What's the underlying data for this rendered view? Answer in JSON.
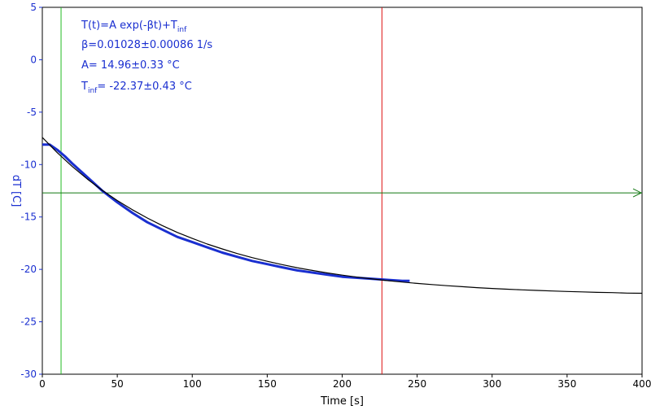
{
  "chart_data": {
    "type": "line",
    "xlabel": "Time [s]",
    "ylabel": "dT [C]",
    "xlim": [
      0,
      400
    ],
    "ylim": [
      -30,
      5
    ],
    "x_ticks": [
      0,
      50,
      100,
      150,
      200,
      250,
      300,
      350,
      400
    ],
    "y_ticks": [
      5,
      0,
      -5,
      -10,
      -15,
      -20,
      -25,
      -30
    ],
    "grid": false,
    "annotations": {
      "formula_main": "T(t)=A exp(-βt)+T",
      "formula_sub": "inf",
      "beta_text": "β=0.01028±0.00086 1/s",
      "a_text": "A= 14.96±0.33 °C",
      "tinf_main": "T",
      "tinf_sub": "inf",
      "tinf_rest": "= -22.37±0.43 °C"
    },
    "fit": {
      "A": 14.96,
      "beta": 0.01028,
      "T_inf": -22.37
    },
    "cursors": {
      "green_vertical_x": 12.5,
      "red_vertical_x": 226.5,
      "green_horizontal_y": -12.7
    },
    "series": [
      {
        "color": "#1a2fd0",
        "x": [
          0,
          5,
          10,
          15,
          20,
          30,
          40,
          50,
          60,
          70,
          80,
          90,
          100,
          110,
          120,
          130,
          140,
          150,
          160,
          170,
          180,
          190,
          200,
          210,
          220,
          230,
          240,
          245
        ],
        "y": [
          -8.1,
          -8.1,
          -8.6,
          -9.2,
          -9.9,
          -11.2,
          -12.5,
          -13.6,
          -14.6,
          -15.5,
          -16.2,
          -16.9,
          -17.4,
          -17.9,
          -18.4,
          -18.8,
          -19.2,
          -19.5,
          -19.8,
          -20.1,
          -20.3,
          -20.5,
          -20.7,
          -20.8,
          -20.9,
          -21.0,
          -21.1,
          -21.1
        ]
      },
      {
        "color": "#000000",
        "x": [
          0,
          10,
          20,
          30,
          40,
          50,
          60,
          70,
          80,
          90,
          100,
          110,
          120,
          130,
          140,
          150,
          160,
          170,
          180,
          190,
          200,
          210,
          220,
          230,
          240,
          250,
          260,
          270,
          280,
          290,
          300,
          310,
          320,
          330,
          340,
          350,
          360,
          370,
          380,
          390,
          400
        ],
        "y": [
          -7.41,
          -8.87,
          -10.19,
          -11.38,
          -12.46,
          -13.43,
          -14.31,
          -15.1,
          -15.82,
          -16.47,
          -17.05,
          -17.58,
          -18.05,
          -18.49,
          -18.88,
          -19.23,
          -19.55,
          -19.84,
          -20.1,
          -20.34,
          -20.55,
          -20.74,
          -20.91,
          -21.07,
          -21.21,
          -21.34,
          -21.45,
          -21.56,
          -21.65,
          -21.74,
          -21.82,
          -21.89,
          -21.95,
          -22.01,
          -22.06,
          -22.11,
          -22.15,
          -22.19,
          -22.22,
          -22.26,
          -22.28
        ]
      }
    ]
  }
}
